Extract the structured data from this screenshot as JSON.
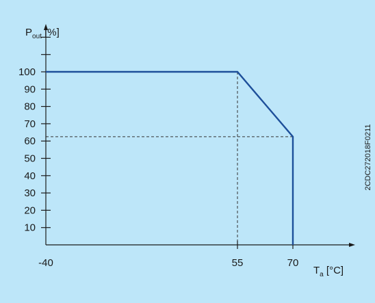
{
  "colors": {
    "background": "#bde6f9",
    "line": "#1d4f9a",
    "axis": "#1a1a1a",
    "guide": "#333333"
  },
  "chart_data": {
    "type": "line",
    "title": "",
    "ylabel_main": "P",
    "ylabel_sub": "out",
    "ylabel_unit": " [%]",
    "xlabel_main": "T",
    "xlabel_sub": "a",
    "xlabel_unit": " [°C]",
    "x_ticks": [
      "-40",
      "55",
      "70"
    ],
    "y_ticks": [
      "10",
      "20",
      "30",
      "40",
      "50",
      "60",
      "70",
      "80",
      "90",
      "100"
    ],
    "xlim": [
      -40,
      80
    ],
    "ylim": [
      0,
      120
    ],
    "series": [
      {
        "x": [
          -40,
          55,
          70,
          70
        ],
        "y": [
          100,
          100,
          62.5,
          0
        ]
      }
    ],
    "guides": [
      {
        "from": [
          55,
          100
        ],
        "to": [
          55,
          0
        ]
      },
      {
        "from": [
          -40,
          62.5
        ],
        "to": [
          70,
          62.5
        ]
      }
    ],
    "side_code": "2CDC272018F0211"
  }
}
